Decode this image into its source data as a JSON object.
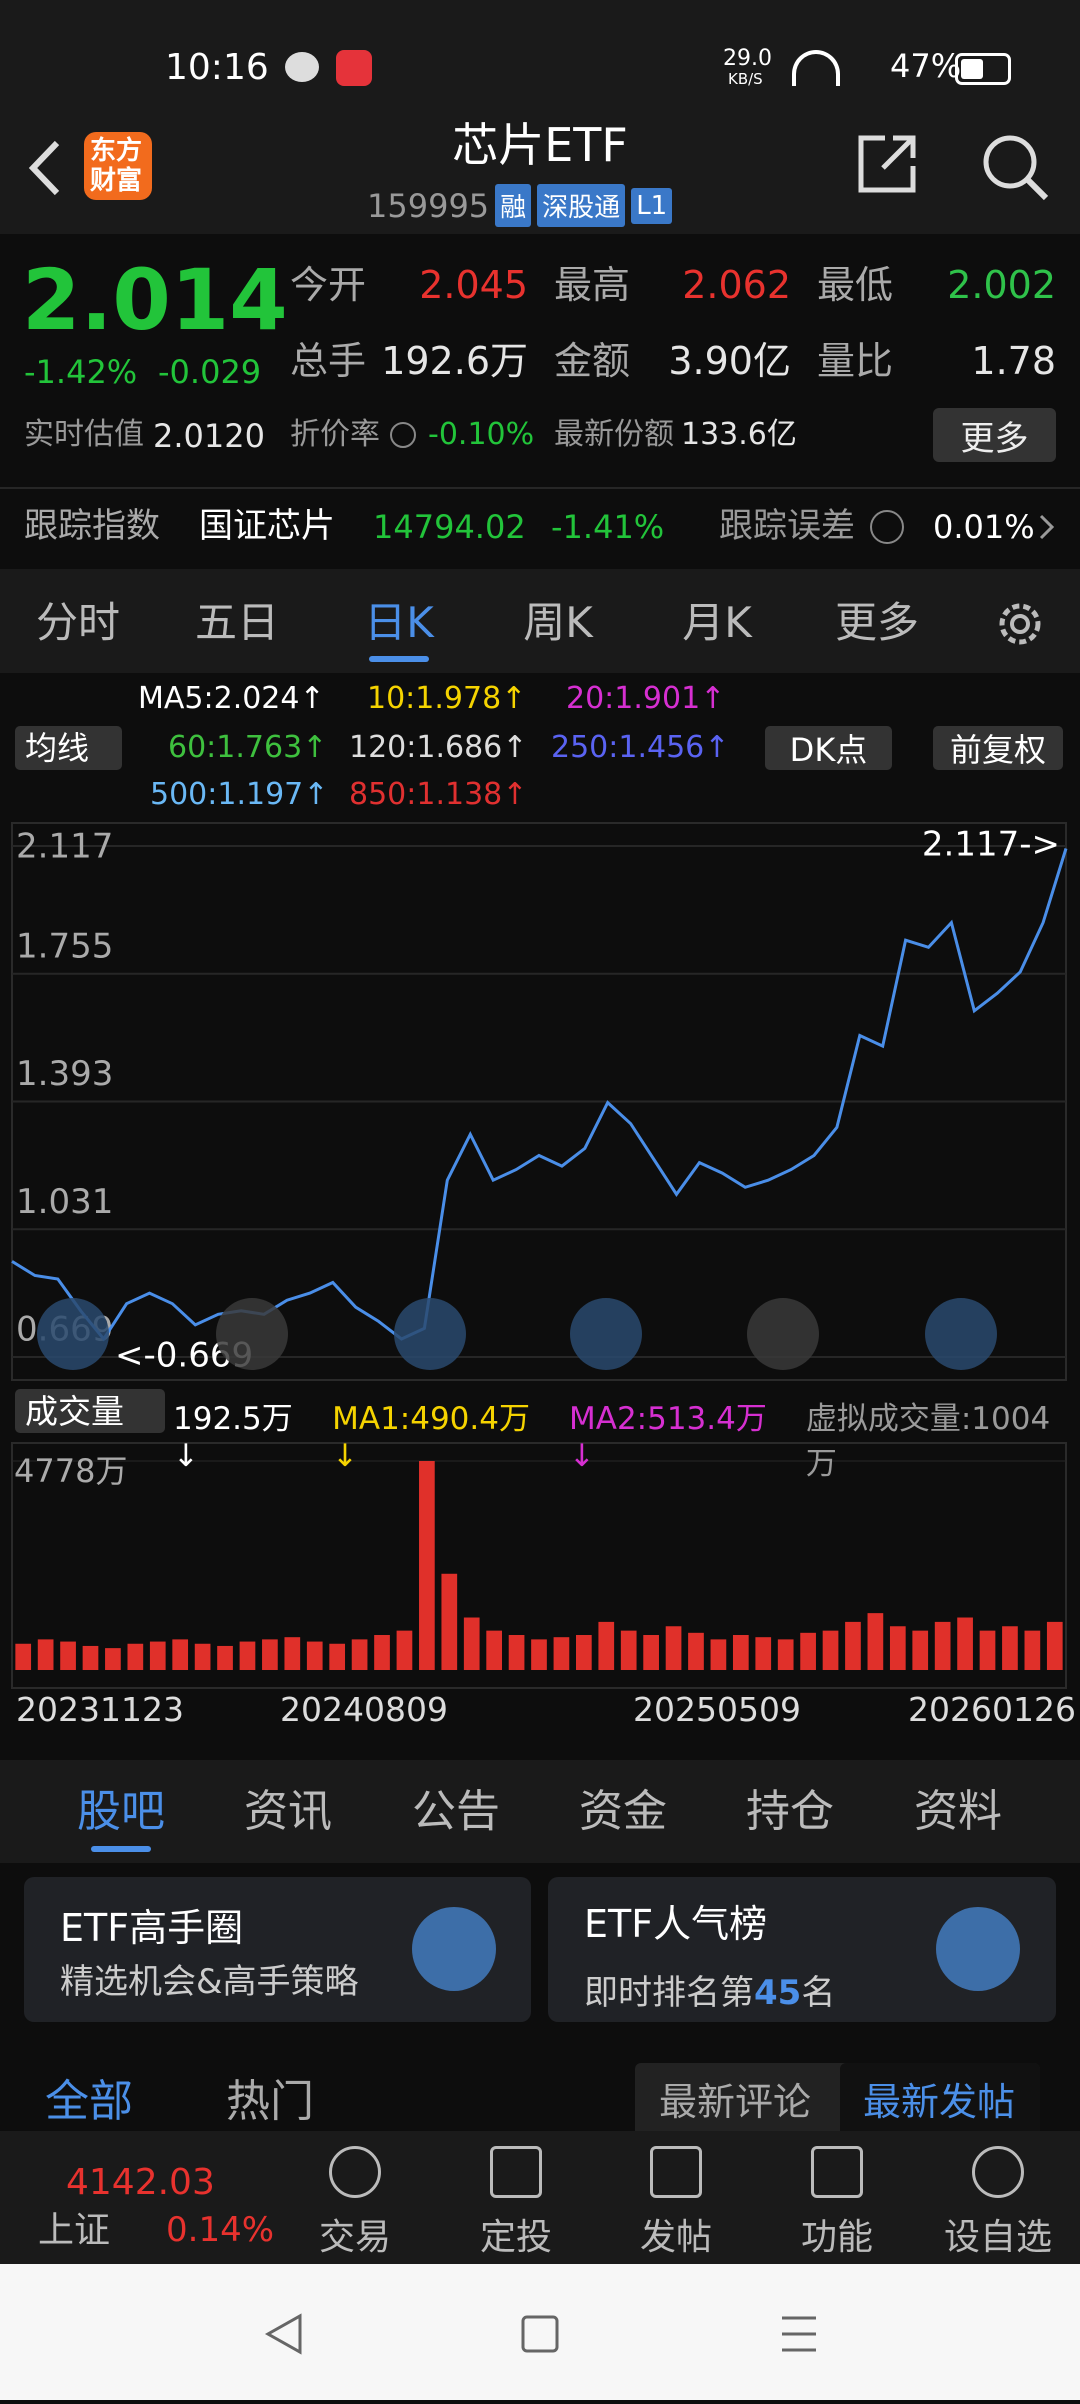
{
  "status_bar": {
    "time": "10:16",
    "net_speed": "29.0",
    "net_unit": "KB/S",
    "battery": "47%"
  },
  "header": {
    "logo_top": "东方",
    "logo_bottom": "财富",
    "title": "芯片ETF",
    "code": "159995",
    "badges": [
      "融",
      "深股通",
      "L1"
    ]
  },
  "quote": {
    "price": "2.014",
    "change_pct": "-1.42%",
    "change": "-0.029",
    "stats": [
      {
        "label": "今开",
        "value": "2.045",
        "color": "#e8322e"
      },
      {
        "label": "最高",
        "value": "2.062",
        "color": "#e8322e"
      },
      {
        "label": "最低",
        "value": "2.002",
        "color": "#2fc24a"
      },
      {
        "label": "总手",
        "value": "192.6万",
        "color": "#e6e6e6"
      },
      {
        "label": "金额",
        "value": "3.90亿",
        "color": "#e6e6e6"
      },
      {
        "label": "量比",
        "value": "1.78",
        "color": "#e6e6e6"
      }
    ],
    "estimate_label": "实时估值",
    "estimate": "2.0120",
    "discount_label": "折价率",
    "discount": "-0.10%",
    "shares_label": "最新份额",
    "shares": "133.6亿",
    "more": "更多"
  },
  "tracking": {
    "label": "跟踪指数",
    "index": "国证芯片",
    "value": "14794.02",
    "change": "-1.41%",
    "error_label": "跟踪误差",
    "error": "0.01%"
  },
  "period_tabs": [
    "分时",
    "五日",
    "日K",
    "周K",
    "月K",
    "更多"
  ],
  "indicators": {
    "selector": "均线",
    "items": [
      {
        "text": "MA5:2.024↑",
        "color": "#ffffff"
      },
      {
        "text": "10:1.978↑",
        "color": "#f5d300"
      },
      {
        "text": "20:1.901↑",
        "color": "#d62fd1"
      },
      {
        "text": "60:1.763↑",
        "color": "#3ec03e"
      },
      {
        "text": "120:1.686↑",
        "color": "#dddddd"
      },
      {
        "text": "250:1.456↑",
        "color": "#5a63f2"
      },
      {
        "text": "500:1.197↑",
        "color": "#6ab8f5"
      },
      {
        "text": "850:1.138↑",
        "color": "#e03030"
      }
    ],
    "dk": "DK点",
    "adjust": "前复权"
  },
  "chart_data": [
    {
      "type": "line",
      "color": "#4a8ee8",
      "ylim": [
        0.669,
        2.117
      ],
      "yticks": [
        2.117,
        1.755,
        1.393,
        1.031,
        0.669
      ],
      "annotations": [
        "2.117->",
        "<-0.669"
      ],
      "values": [
        0.94,
        0.9,
        0.89,
        0.8,
        0.72,
        0.82,
        0.85,
        0.82,
        0.76,
        0.79,
        0.8,
        0.79,
        0.83,
        0.85,
        0.88,
        0.81,
        0.77,
        0.72,
        0.75,
        1.17,
        1.3,
        1.17,
        1.2,
        1.24,
        1.21,
        1.26,
        1.39,
        1.33,
        1.23,
        1.13,
        1.22,
        1.19,
        1.15,
        1.17,
        1.2,
        1.24,
        1.32,
        1.58,
        1.55,
        1.85,
        1.83,
        1.9,
        1.65,
        1.7,
        1.76,
        1.9,
        2.11
      ]
    },
    {
      "type": "bar",
      "title": "成交量",
      "color": "#e0302a",
      "ylim": [
        0,
        4778
      ],
      "yticks": [
        {
          "value": 4778,
          "label": "4778万"
        }
      ],
      "legend": [
        {
          "text": "192.5万↓",
          "color": "#ffffff"
        },
        {
          "text": "MA1:490.4万↓",
          "color": "#f5d300"
        },
        {
          "text": "MA2:513.4万↓",
          "color": "#d62fd1"
        },
        {
          "text": "虚拟成交量:1004万",
          "color": "#9a9a9a"
        }
      ],
      "values": [
        600,
        700,
        650,
        550,
        500,
        600,
        650,
        700,
        600,
        550,
        650,
        700,
        750,
        650,
        600,
        700,
        800,
        900,
        4778,
        2200,
        1200,
        900,
        800,
        700,
        750,
        800,
        1100,
        900,
        800,
        1000,
        850,
        700,
        800,
        750,
        700,
        850,
        900,
        1100,
        1300,
        1000,
        900,
        1100,
        1200,
        900,
        1000,
        900,
        1100
      ]
    }
  ],
  "x_axis_labels": [
    "20231123",
    "20240809",
    "20250509",
    "20260126"
  ],
  "content_tabs": [
    "股吧",
    "资讯",
    "公告",
    "资金",
    "持仓",
    "资料"
  ],
  "cards": [
    {
      "title": "ETF高手圈",
      "subtitle": "精选机会&高手策略"
    },
    {
      "title": "ETF人气榜",
      "subtitle_prefix": "即时排名第",
      "rank": "45",
      "subtitle_suffix": "名"
    }
  ],
  "filter_tabs": [
    "全部",
    "热门"
  ],
  "sort_tabs": [
    "最新评论",
    "最新发帖"
  ],
  "bottom_nav": {
    "index_value": "4142.03",
    "index_name": "上证",
    "index_change": "0.14%",
    "items": [
      "交易",
      "定投",
      "发帖",
      "功能",
      "设自选"
    ]
  }
}
